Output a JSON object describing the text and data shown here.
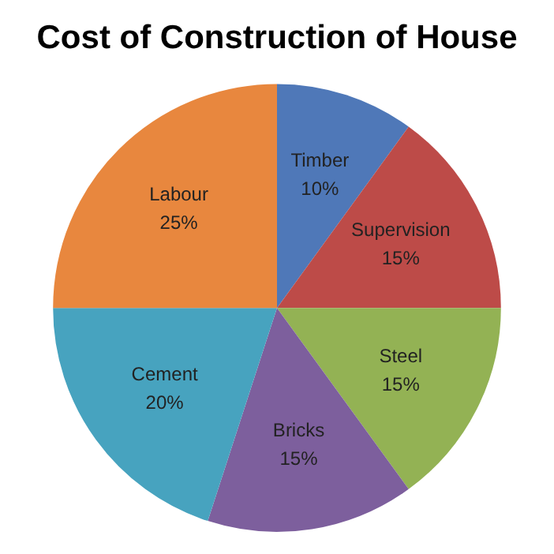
{
  "chart_data": {
    "type": "pie",
    "title": "Cost of Construction of House",
    "categories": [
      "Timber",
      "Supervision",
      "Steel",
      "Bricks",
      "Cement",
      "Labour"
    ],
    "values": [
      10,
      15,
      15,
      15,
      20,
      25
    ],
    "value_labels": [
      "10%",
      "15%",
      "15%",
      "15%",
      "20%",
      "25%"
    ],
    "colors": [
      "#4f78b8",
      "#bd4b48",
      "#93b254",
      "#7d5f9d",
      "#47a3bf",
      "#e8873e"
    ],
    "legend": false
  }
}
